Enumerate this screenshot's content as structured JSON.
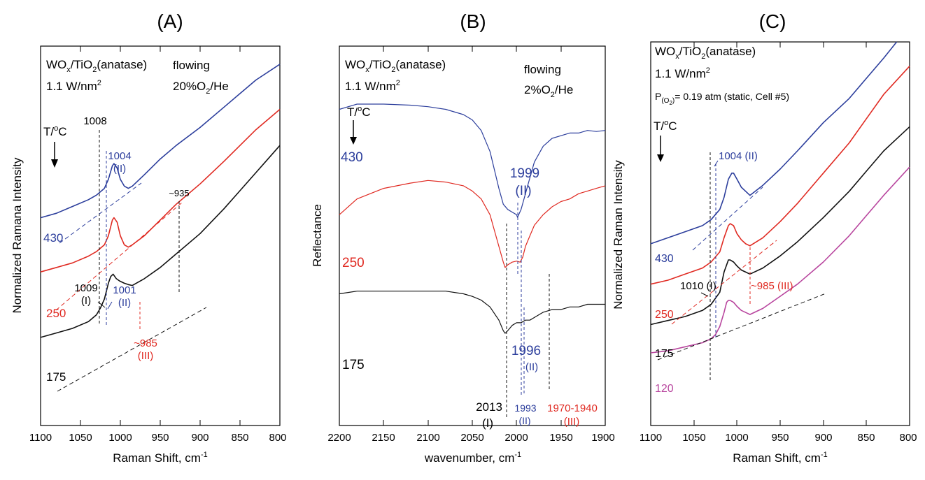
{
  "colors": {
    "black": "#111111",
    "blue": "#2c3e9c",
    "red": "#e02a22",
    "magenta": "#b8459e"
  },
  "panels": [
    {
      "id": "A",
      "panel_label": "(A)",
      "xlabel_main": "Raman Shift, cm",
      "xlabel_sup": "-1",
      "ylabel": "Normalized Ramana Intensity",
      "xticks": [
        "1100",
        "1050",
        "1000",
        "950",
        "900",
        "850",
        "800"
      ],
      "sample_label": "WO",
      "sample_sub": "x",
      "sample_rest": "/TiO",
      "sample_sub2": "2",
      "sample_end": "(anatase)",
      "power": "1.1  W/nm",
      "power_sup": "2",
      "gas_line1": "flowing",
      "gas_line2_a": "20%O",
      "gas_line2_sub": "2",
      "gas_line2_b": "/He",
      "temp_label": "T/",
      "temp_sup": "o",
      "temp_unit": "C",
      "series_labels": [
        "430",
        "250",
        "175"
      ],
      "annotations": {
        "a1008": "1008",
        "a1004": "1004",
        "a1004_ii": "(II)",
        "a935": "~935",
        "a1009": "1009",
        "a1009_i": "(I)",
        "a1001": "1001",
        "a1001_ii": "(II)",
        "a985": "~985",
        "a985_iii": "(III)"
      }
    },
    {
      "id": "B",
      "panel_label": "(B)",
      "xlabel_main": "wavenumber, cm",
      "xlabel_sup": "-1",
      "ylabel": "Reflectance",
      "xticks": [
        "2200",
        "2150",
        "2100",
        "2050",
        "2000",
        "1950",
        "1900"
      ],
      "sample_label": "WO",
      "sample_sub": "x",
      "sample_rest": "/TiO",
      "sample_sub2": "2",
      "sample_end": "(anatase)",
      "power": "1.1  W/nm",
      "power_sup": "2",
      "gas_line1": "flowing",
      "gas_line2_a": "2%O",
      "gas_line2_sub": "2",
      "gas_line2_b": "/He",
      "temp_label": "T/",
      "temp_sup": "o",
      "temp_unit": "C",
      "series_labels": [
        "430",
        "250",
        "175"
      ],
      "annotations": {
        "a1999": "1999",
        "a1999_ii": "(II)",
        "a1996": "1996",
        "a1996_ii": "(II)",
        "a2013": "2013",
        "a2013_i": "(I)",
        "a1993": "1993",
        "a1993_ii": "(II)",
        "a1970": "1970-1940",
        "a1970_iii": "(III)"
      }
    },
    {
      "id": "C",
      "panel_label": "(C)",
      "xlabel_main": "Raman Shift, cm",
      "xlabel_sup": "-1",
      "ylabel": "Normalized Raman Intensity",
      "xticks": [
        "1100",
        "1050",
        "1000",
        "950",
        "900",
        "850",
        "800"
      ],
      "sample_label": "WO",
      "sample_sub": "x",
      "sample_rest": "/TiO",
      "sample_sub2": "2",
      "sample_end": "(anatase)",
      "power": "1.1 W/nm",
      "power_sup": "2",
      "pressure_a": "P",
      "pressure_sub_a": "(O",
      "pressure_sub_b": "2",
      "pressure_sub_c": ")",
      "pressure_b": "= 0.19 atm (static, Cell #5)",
      "temp_label": "T/",
      "temp_sup": "o",
      "temp_unit": "C",
      "series_labels": [
        "430",
        "250",
        "175",
        "120"
      ],
      "annotations": {
        "a1004": "1004 (II)",
        "a1010": "1010 (I)",
        "a985": "~985 (III)"
      }
    }
  ],
  "chart_data": [
    {
      "type": "line",
      "xlabel": "Raman Shift, cm-1",
      "ylabel": "Normalized Ramana Intensity",
      "xlim": [
        1100,
        800
      ],
      "series": [
        {
          "name": "430",
          "x": [
            1100,
            1080,
            1060,
            1040,
            1030,
            1020,
            1015,
            1010,
            1008,
            1004,
            1000,
            995,
            990,
            985,
            970,
            950,
            930,
            900,
            870,
            850,
            830,
            800
          ],
          "y": [
            3.0,
            3.1,
            3.25,
            3.4,
            3.5,
            3.65,
            3.85,
            4.15,
            4.2,
            4.1,
            3.85,
            3.7,
            3.65,
            3.7,
            3.95,
            4.3,
            4.6,
            5.0,
            5.45,
            5.75,
            6.05,
            6.4
          ]
        },
        {
          "name": "250",
          "x": [
            1100,
            1080,
            1060,
            1040,
            1030,
            1020,
            1015,
            1010,
            1008,
            1004,
            1000,
            995,
            990,
            985,
            970,
            950,
            930,
            900,
            870,
            850,
            830,
            800
          ],
          "y": [
            1.8,
            1.9,
            2.0,
            2.15,
            2.25,
            2.4,
            2.6,
            2.95,
            3.0,
            2.9,
            2.6,
            2.4,
            2.35,
            2.4,
            2.6,
            2.95,
            3.3,
            3.75,
            4.25,
            4.6,
            4.95,
            5.4
          ]
        },
        {
          "name": "175",
          "x": [
            1100,
            1080,
            1060,
            1040,
            1030,
            1025,
            1020,
            1015,
            1012,
            1009,
            1005,
            1001,
            995,
            990,
            985,
            970,
            950,
            930,
            900,
            870,
            850,
            830,
            800
          ],
          "y": [
            0.35,
            0.45,
            0.55,
            0.7,
            0.85,
            1.0,
            1.2,
            1.55,
            1.7,
            1.75,
            1.65,
            1.6,
            1.55,
            1.52,
            1.5,
            1.65,
            1.9,
            2.2,
            2.65,
            3.2,
            3.6,
            4.0,
            4.6
          ]
        }
      ]
    },
    {
      "type": "line",
      "xlabel": "wavenumber, cm-1",
      "ylabel": "Reflectance",
      "xlim": [
        2200,
        1900
      ],
      "series": [
        {
          "name": "430",
          "x": [
            2200,
            2180,
            2150,
            2120,
            2100,
            2080,
            2060,
            2050,
            2040,
            2030,
            2020,
            2015,
            2010,
            2005,
            2000,
            1999,
            1995,
            1990,
            1985,
            1980,
            1970,
            1960,
            1950,
            1940,
            1930,
            1920,
            1910,
            1900
          ],
          "y": [
            4.0,
            4.1,
            4.1,
            4.08,
            4.05,
            4.0,
            3.9,
            3.8,
            3.6,
            3.2,
            2.5,
            2.2,
            2.1,
            2.05,
            2.0,
            1.95,
            2.1,
            2.4,
            2.7,
            3.0,
            3.3,
            3.45,
            3.5,
            3.55,
            3.55,
            3.6,
            3.58,
            3.6
          ]
        },
        {
          "name": "250",
          "x": [
            2200,
            2180,
            2150,
            2120,
            2100,
            2080,
            2060,
            2050,
            2040,
            2030,
            2020,
            2015,
            2013,
            2010,
            2005,
            2000,
            1996,
            1993,
            1990,
            1985,
            1980,
            1970,
            1960,
            1950,
            1940,
            1930,
            1920,
            1910,
            1900
          ],
          "y": [
            2.0,
            2.3,
            2.5,
            2.6,
            2.65,
            2.62,
            2.55,
            2.45,
            2.3,
            2.0,
            1.4,
            1.1,
            1.0,
            1.05,
            1.1,
            1.12,
            1.1,
            1.2,
            1.4,
            1.6,
            1.8,
            2.0,
            2.15,
            2.25,
            2.3,
            2.4,
            2.45,
            2.5,
            2.55
          ]
        },
        {
          "name": "175",
          "x": [
            2200,
            2180,
            2150,
            2120,
            2100,
            2080,
            2060,
            2050,
            2040,
            2030,
            2020,
            2015,
            2013,
            2010,
            2005,
            2000,
            1995,
            1990,
            1985,
            1980,
            1970,
            1960,
            1950,
            1940,
            1930,
            1920,
            1910,
            1900
          ],
          "y": [
            0.5,
            0.55,
            0.55,
            0.55,
            0.55,
            0.55,
            0.5,
            0.45,
            0.38,
            0.25,
            0.0,
            -0.2,
            -0.25,
            -0.2,
            -0.1,
            -0.05,
            -0.05,
            0.0,
            0.0,
            0.05,
            0.15,
            0.2,
            0.2,
            0.25,
            0.25,
            0.3,
            0.3,
            0.3
          ]
        }
      ]
    },
    {
      "type": "line",
      "xlabel": "Raman Shift, cm-1",
      "ylabel": "Normalized Raman Intensity",
      "xlim": [
        1100,
        800
      ],
      "series": [
        {
          "name": "430",
          "x": [
            1100,
            1080,
            1060,
            1040,
            1030,
            1020,
            1015,
            1010,
            1006,
            1004,
            1000,
            995,
            990,
            985,
            970,
            950,
            930,
            900,
            870,
            850,
            830,
            815
          ],
          "y": [
            3.0,
            3.15,
            3.3,
            3.45,
            3.6,
            3.85,
            4.15,
            4.6,
            4.75,
            4.75,
            4.6,
            4.4,
            4.3,
            4.2,
            4.45,
            4.85,
            5.3,
            6.0,
            6.6,
            7.1,
            7.6,
            8.0
          ]
        },
        {
          "name": "250",
          "x": [
            1100,
            1080,
            1060,
            1040,
            1030,
            1020,
            1015,
            1010,
            1008,
            1004,
            1000,
            995,
            990,
            985,
            970,
            950,
            930,
            900,
            870,
            850,
            830,
            800
          ],
          "y": [
            2.0,
            2.1,
            2.25,
            2.4,
            2.55,
            2.8,
            3.15,
            3.45,
            3.5,
            3.45,
            3.25,
            3.1,
            3.0,
            2.95,
            3.15,
            3.55,
            4.0,
            4.75,
            5.5,
            6.1,
            6.7,
            7.4
          ]
        },
        {
          "name": "175",
          "x": [
            1100,
            1080,
            1060,
            1040,
            1030,
            1020,
            1015,
            1010,
            1008,
            1004,
            1000,
            995,
            990,
            985,
            970,
            950,
            930,
            900,
            870,
            850,
            830,
            800
          ],
          "y": [
            1.0,
            1.1,
            1.2,
            1.35,
            1.5,
            1.8,
            2.3,
            2.6,
            2.6,
            2.55,
            2.45,
            2.35,
            2.3,
            2.25,
            2.4,
            2.7,
            3.05,
            3.65,
            4.3,
            4.8,
            5.3,
            5.9
          ]
        },
        {
          "name": "120",
          "x": [
            1100,
            1080,
            1060,
            1040,
            1030,
            1025,
            1020,
            1015,
            1012,
            1010,
            1008,
            1004,
            1000,
            995,
            990,
            985,
            970,
            950,
            930,
            900,
            870,
            850,
            830,
            800
          ],
          "y": [
            0.3,
            0.35,
            0.45,
            0.55,
            0.65,
            0.75,
            0.95,
            1.3,
            1.55,
            1.6,
            1.6,
            1.55,
            1.45,
            1.35,
            1.3,
            1.25,
            1.4,
            1.7,
            2.0,
            2.55,
            3.2,
            3.7,
            4.2,
            4.9
          ]
        }
      ]
    }
  ]
}
